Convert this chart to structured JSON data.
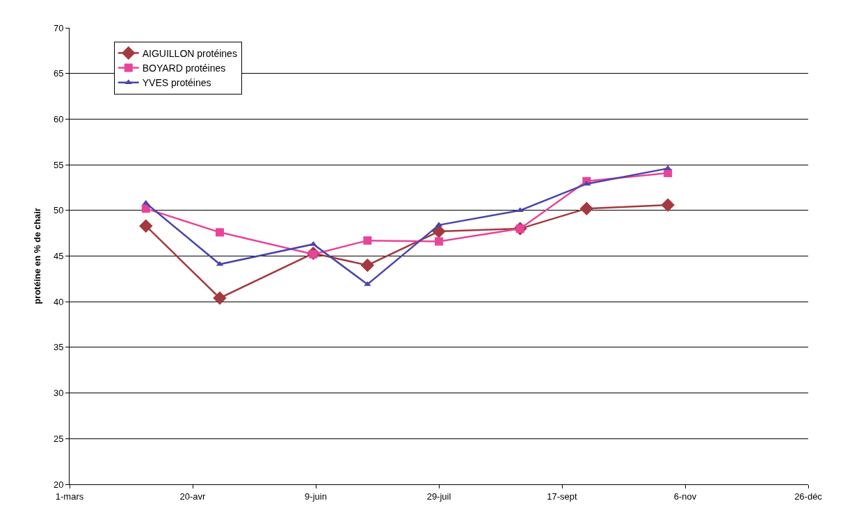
{
  "chart_data": {
    "type": "line",
    "ylabel": "protéine en % de chair",
    "x": [
      "--04-01",
      "--05-01",
      "--06-08",
      "--06-30",
      "--07-29",
      "--08-31",
      "--09-27",
      "--10-30"
    ],
    "series": [
      {
        "name": "AIGUILLON protéines",
        "color": "#a33a3f",
        "marker": "diamond",
        "values": [
          48.3,
          40.4,
          45.3,
          44.0,
          47.7,
          48.0,
          50.2,
          50.6
        ]
      },
      {
        "name": "BOYARD protéines",
        "color": "#e8449a",
        "marker": "square",
        "values": [
          50.2,
          47.6,
          45.2,
          46.7,
          46.6,
          48.0,
          53.2,
          54.1
        ]
      },
      {
        "name": "YVES protéines",
        "color": "#4a45a8",
        "marker": "triangle",
        "values": [
          50.8,
          44.1,
          46.3,
          41.9,
          48.4,
          50.0,
          52.9,
          54.6
        ]
      }
    ],
    "xlim": [
      "--03-01",
      "--12-26"
    ],
    "xticks": [
      {
        "value": "--03-01",
        "label": "1-mars"
      },
      {
        "value": "--04-20",
        "label": "20-avr"
      },
      {
        "value": "--06-09",
        "label": "9-juin"
      },
      {
        "value": "--07-29",
        "label": "29-juil"
      },
      {
        "value": "--09-17",
        "label": "17-sept"
      },
      {
        "value": "--11-06",
        "label": "6-nov"
      },
      {
        "value": "--12-26",
        "label": "26-déc"
      }
    ],
    "ylim": [
      20,
      70
    ],
    "yticks": [
      20,
      25,
      30,
      35,
      40,
      45,
      50,
      55,
      60,
      65,
      70
    ],
    "grid": "y",
    "legend": "top left",
    "line_style": "solid"
  }
}
